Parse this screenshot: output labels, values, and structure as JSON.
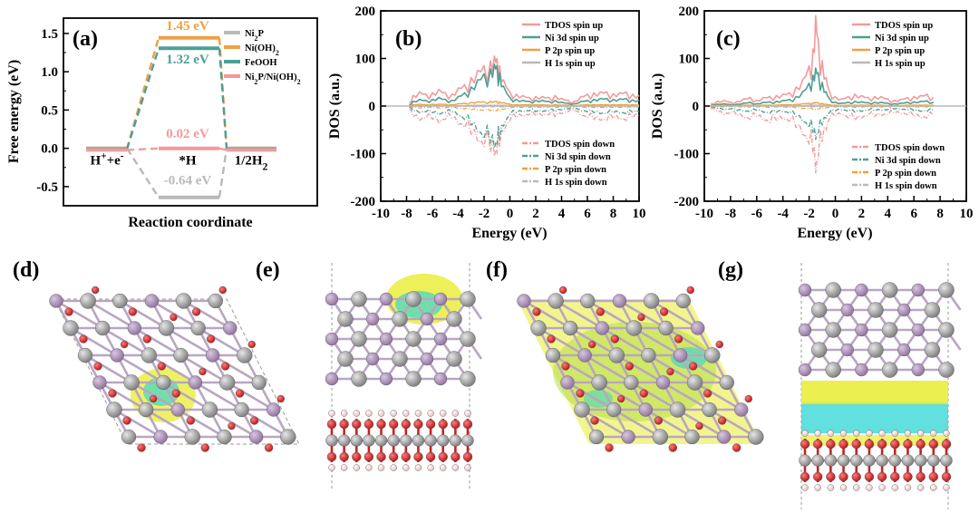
{
  "panel_labels": [
    "(a)",
    "(b)",
    "(c)",
    "(d)",
    "(e)",
    "(f)",
    "(g)"
  ],
  "colors": {
    "ni2p": "#b9b9b9",
    "nioh2": "#f0a040",
    "feooh": "#4e9f96",
    "heterostructure": "#f29a9a",
    "tdos": "#f29a9a",
    "ni3d": "#4e9f96",
    "p2p": "#f0a040",
    "h1s": "#b9b9b9",
    "ni_atom": "#8c8c8c",
    "p_atom": "#a58ab0",
    "o_atom": "#cc1f1f",
    "h_atom": "#f4d6d6",
    "charge_accum": "#e8ec30",
    "charge_deplete": "#2ed4d4"
  },
  "chart_data": [
    {
      "type": "line",
      "panel": "(a)",
      "xlabel": "Reaction coordinate",
      "ylabel": "Free energy (eV)",
      "ylim": [
        -0.75,
        1.7
      ],
      "yticks": [
        "-0.5",
        "0.0",
        "0.5",
        "1.0",
        "1.5"
      ],
      "states": [
        "H⁺+e⁻",
        "*H",
        "1/2H₂"
      ],
      "series": [
        {
          "name": "Ni₂P",
          "values": [
            0,
            -0.64,
            0
          ],
          "color": "#b9b9b9"
        },
        {
          "name": "Ni(OH)₂",
          "values": [
            0,
            1.45,
            0
          ],
          "color": "#f0a040"
        },
        {
          "name": "FeOOH",
          "values": [
            0,
            1.32,
            0
          ],
          "color": "#4e9f96"
        },
        {
          "name": "Ni₂P/Ni(OH)₂",
          "values": [
            0,
            0.02,
            0
          ],
          "color": "#f29a9a"
        }
      ],
      "annotations": [
        "1.45 eV",
        "1.32 eV",
        "0.02 eV",
        "-0.64 eV"
      ],
      "legend_position": "top-right"
    },
    {
      "type": "line",
      "panel": "(b)",
      "xlabel": "Energy (eV)",
      "ylabel": "DOS (a.u.)",
      "xlim": [
        -10,
        10
      ],
      "ylim": [
        -200,
        200
      ],
      "xticks": [
        "-10",
        "-8",
        "-6",
        "-4",
        "-2",
        "0",
        "2",
        "4",
        "6",
        "8",
        "10"
      ],
      "yticks": [
        "-200",
        "-100",
        "0",
        "100",
        "200"
      ],
      "legend_up": [
        "TDOS spin up",
        "Ni 3d spin up",
        "P 2p spin up",
        "H 1s spin up"
      ],
      "legend_down": [
        "TDOS spin down",
        "Ni 3d spin down",
        "P 2p spin down",
        "H 1s spin down"
      ],
      "x": [
        -7.8,
        -7.5,
        -7,
        -6.5,
        -6,
        -5.5,
        -5,
        -4.5,
        -4,
        -3.5,
        -3,
        -2.5,
        -2,
        -1.5,
        -1.2,
        -1,
        -0.8,
        -0.5,
        0,
        0.5,
        1,
        1.5,
        2,
        2.5,
        3,
        3.5,
        4,
        4.5,
        5,
        5.5,
        6,
        6.5,
        7,
        7.5,
        8,
        8.5,
        9,
        9.5,
        10
      ],
      "series": [
        {
          "name": "TDOS spin up",
          "values": [
            8,
            22,
            30,
            25,
            28,
            35,
            28,
            25,
            38,
            45,
            60,
            75,
            85,
            95,
            105,
            100,
            85,
            55,
            30,
            25,
            22,
            18,
            20,
            20,
            18,
            22,
            16,
            12,
            10,
            20,
            25,
            28,
            30,
            30,
            26,
            28,
            30,
            25,
            22
          ]
        },
        {
          "name": "Ni 3d spin up",
          "values": [
            3,
            10,
            14,
            12,
            14,
            18,
            14,
            12,
            20,
            28,
            40,
            55,
            68,
            78,
            88,
            85,
            70,
            42,
            18,
            14,
            12,
            10,
            12,
            12,
            10,
            12,
            8,
            6,
            5,
            10,
            12,
            14,
            16,
            16,
            14,
            15,
            16,
            13,
            12
          ]
        },
        {
          "name": "P 2p spin up",
          "values": [
            1,
            3,
            4,
            3,
            4,
            4,
            4,
            3,
            5,
            6,
            8,
            9,
            9,
            10,
            10,
            10,
            9,
            7,
            4,
            3,
            3,
            3,
            3,
            3,
            2,
            3,
            2,
            2,
            1,
            2,
            3,
            3,
            3,
            3,
            3,
            3,
            3,
            3,
            2
          ]
        },
        {
          "name": "H 1s spin up",
          "values": [
            0,
            1,
            1,
            1,
            1,
            1,
            1,
            1,
            1,
            1,
            2,
            2,
            2,
            2,
            2,
            2,
            2,
            2,
            1,
            1,
            1,
            1,
            1,
            1,
            1,
            1,
            1,
            1,
            0,
            1,
            1,
            1,
            1,
            1,
            1,
            1,
            1,
            1,
            1
          ]
        },
        {
          "name": "TDOS spin down",
          "values": [
            -8,
            -22,
            -30,
            -25,
            -28,
            -35,
            -28,
            -25,
            -38,
            -45,
            -60,
            -75,
            -85,
            -95,
            -105,
            -100,
            -85,
            -55,
            -30,
            -25,
            -22,
            -18,
            -20,
            -20,
            -18,
            -22,
            -16,
            -12,
            -10,
            -20,
            -25,
            -28,
            -30,
            -30,
            -26,
            -28,
            -30,
            -25,
            -22
          ]
        },
        {
          "name": "Ni 3d spin down",
          "values": [
            -3,
            -10,
            -14,
            -12,
            -14,
            -18,
            -14,
            -12,
            -20,
            -28,
            -40,
            -55,
            -68,
            -78,
            -88,
            -85,
            -70,
            -42,
            -18,
            -14,
            -12,
            -10,
            -12,
            -12,
            -10,
            -12,
            -8,
            -6,
            -5,
            -10,
            -12,
            -14,
            -16,
            -16,
            -14,
            -15,
            -16,
            -13,
            -12
          ]
        },
        {
          "name": "P 2p spin down",
          "values": [
            -1,
            -3,
            -4,
            -3,
            -4,
            -4,
            -4,
            -3,
            -5,
            -6,
            -8,
            -9,
            -9,
            -10,
            -10,
            -10,
            -9,
            -7,
            -4,
            -3,
            -3,
            -3,
            -3,
            -3,
            -2,
            -3,
            -2,
            -2,
            -1,
            -2,
            -3,
            -3,
            -3,
            -3,
            -3,
            -3,
            -3,
            -3,
            -2
          ]
        },
        {
          "name": "H 1s spin down",
          "values": [
            0,
            -1,
            -1,
            -1,
            -1,
            -1,
            -1,
            -1,
            -1,
            -1,
            -2,
            -2,
            -2,
            -2,
            -2,
            -2,
            -2,
            -2,
            -1,
            -1,
            -1,
            -1,
            -1,
            -1,
            -1,
            -1,
            -1,
            -1,
            0,
            -1,
            -1,
            -1,
            -1,
            -1,
            -1,
            -1,
            -1,
            -1,
            -1
          ]
        }
      ]
    },
    {
      "type": "line",
      "panel": "(c)",
      "xlabel": "Energy (eV)",
      "ylabel": "DOS (a.u.)",
      "xlim": [
        -10,
        10
      ],
      "ylim": [
        -200,
        200
      ],
      "xticks": [
        "-10",
        "-8",
        "-6",
        "-4",
        "-2",
        "0",
        "2",
        "4",
        "6",
        "8",
        "10"
      ],
      "yticks": [
        "-200",
        "-100",
        "0",
        "100",
        "200"
      ],
      "legend_up": [
        "TDOS spin up",
        "Ni 3d spin up",
        "P 2p spin up",
        "H 1s spin up"
      ],
      "legend_down": [
        "TDOS spin down",
        "Ni 3d spin down",
        "P 2p spin down",
        "H 1s spin down"
      ],
      "x": [
        -9.5,
        -9,
        -8.5,
        -8,
        -7.5,
        -7,
        -6.5,
        -6,
        -5.5,
        -5,
        -4.5,
        -4,
        -3.5,
        -3,
        -2.5,
        -2,
        -1.7,
        -1.5,
        -1.3,
        -1,
        -0.7,
        -0.5,
        0,
        0.5,
        1,
        1.5,
        2,
        2.5,
        3,
        3.5,
        4,
        4.5,
        5,
        5.5,
        6,
        6.5,
        7,
        7.5
      ],
      "series": [
        {
          "name": "TDOS spin up",
          "values": [
            5,
            10,
            12,
            8,
            10,
            15,
            18,
            12,
            18,
            20,
            22,
            25,
            28,
            40,
            55,
            85,
            120,
            190,
            140,
            95,
            60,
            35,
            20,
            15,
            20,
            25,
            22,
            18,
            20,
            20,
            15,
            12,
            14,
            18,
            20,
            22,
            25,
            18
          ]
        },
        {
          "name": "Ni 3d spin up",
          "values": [
            2,
            4,
            5,
            3,
            4,
            6,
            8,
            5,
            8,
            9,
            10,
            12,
            14,
            20,
            30,
            48,
            65,
            80,
            70,
            50,
            30,
            18,
            8,
            6,
            8,
            10,
            9,
            7,
            8,
            8,
            6,
            5,
            6,
            8,
            9,
            10,
            11,
            8
          ]
        },
        {
          "name": "P 2p spin up",
          "values": [
            1,
            1,
            2,
            1,
            1,
            2,
            2,
            1,
            2,
            2,
            2,
            3,
            3,
            4,
            5,
            6,
            7,
            8,
            7,
            6,
            4,
            3,
            2,
            1,
            2,
            2,
            2,
            2,
            2,
            2,
            1,
            1,
            1,
            2,
            2,
            2,
            2,
            2
          ]
        },
        {
          "name": "H 1s spin up",
          "values": [
            0,
            0,
            1,
            0,
            0,
            1,
            1,
            0,
            1,
            1,
            1,
            1,
            1,
            1,
            1,
            2,
            2,
            2,
            2,
            2,
            1,
            1,
            1,
            0,
            1,
            1,
            1,
            1,
            1,
            1,
            0,
            0,
            0,
            1,
            1,
            1,
            1,
            1
          ]
        },
        {
          "name": "TDOS spin down",
          "values": [
            -5,
            -12,
            -18,
            -15,
            -20,
            -25,
            -28,
            -22,
            -30,
            -35,
            -30,
            -28,
            -32,
            -45,
            -60,
            -80,
            -100,
            -140,
            -110,
            -75,
            -50,
            -30,
            -22,
            -18,
            -25,
            -30,
            -25,
            -20,
            -22,
            -20,
            -18,
            -15,
            -16,
            -18,
            -22,
            -25,
            -25,
            -20
          ]
        },
        {
          "name": "Ni 3d spin down",
          "values": [
            -2,
            -5,
            -8,
            -6,
            -9,
            -11,
            -12,
            -9,
            -13,
            -15,
            -13,
            -12,
            -15,
            -22,
            -32,
            -45,
            -55,
            -70,
            -58,
            -40,
            -25,
            -15,
            -10,
            -8,
            -11,
            -13,
            -11,
            -9,
            -10,
            -9,
            -8,
            -6,
            -7,
            -8,
            -10,
            -11,
            -11,
            -9
          ]
        },
        {
          "name": "P 2p spin down",
          "values": [
            -1,
            -1,
            -2,
            -1,
            -2,
            -2,
            -2,
            -2,
            -2,
            -3,
            -2,
            -2,
            -3,
            -4,
            -5,
            -6,
            -7,
            -8,
            -7,
            -6,
            -4,
            -3,
            -2,
            -2,
            -2,
            -3,
            -2,
            -2,
            -2,
            -2,
            -2,
            -1,
            -1,
            -2,
            -2,
            -2,
            -2,
            -2
          ]
        },
        {
          "name": "H 1s spin down",
          "values": [
            0,
            0,
            -1,
            0,
            -1,
            -1,
            -1,
            -1,
            -1,
            -1,
            -1,
            -1,
            -1,
            -1,
            -1,
            -2,
            -2,
            -2,
            -2,
            -2,
            -1,
            -1,
            -1,
            -1,
            -1,
            -1,
            -1,
            -1,
            -1,
            -1,
            -1,
            0,
            0,
            -1,
            -1,
            -1,
            -1,
            -1
          ]
        }
      ]
    }
  ]
}
